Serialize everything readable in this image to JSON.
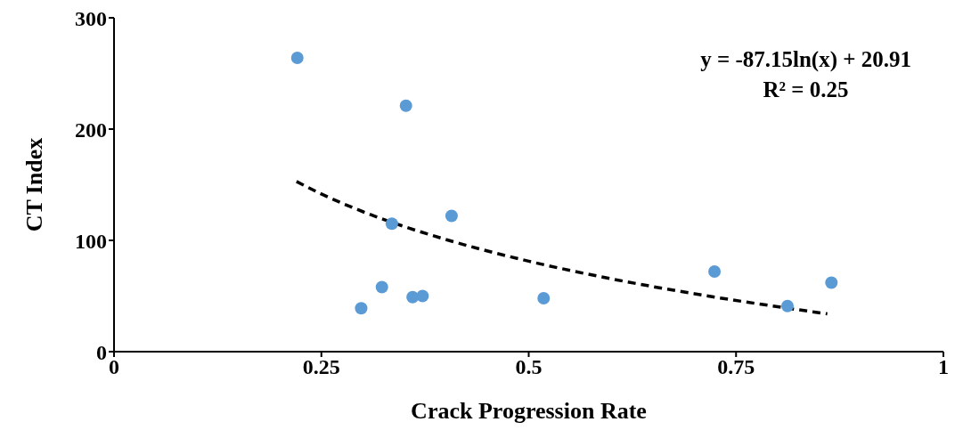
{
  "chart_data": {
    "type": "scatter",
    "xlabel": "Crack Progression Rate",
    "ylabel": "CT Index",
    "xlim": [
      0,
      1
    ],
    "ylim": [
      0,
      300
    ],
    "xticks": [
      0,
      0.25,
      0.5,
      0.75,
      1
    ],
    "yticks": [
      0,
      100,
      200,
      300
    ],
    "grid": false,
    "legend": false,
    "series": [
      {
        "color": "#5b9bd5",
        "marker": "circle",
        "x": [
          0.221,
          0.352,
          0.335,
          0.407,
          0.323,
          0.298,
          0.36,
          0.372,
          0.518,
          0.724,
          0.812,
          0.865
        ],
        "values": [
          264,
          221,
          115,
          122,
          58,
          39,
          49,
          50,
          48,
          72,
          41,
          62
        ]
      },
      {
        "type": "line",
        "color": "#000000",
        "marker": "none",
        "line_style": "dashed",
        "x": [
          0.22,
          0.25,
          0.3,
          0.35,
          0.4,
          0.5,
          0.6,
          0.7,
          0.8,
          0.86
        ],
        "values": [
          152.9,
          141.7,
          125.8,
          112.4,
          100.8,
          81.3,
          65.4,
          52,
          40.4,
          34
        ]
      }
    ],
    "annotations": [
      "y = -87.15ln(x) + 20.91",
      "R² = 0.25"
    ]
  }
}
